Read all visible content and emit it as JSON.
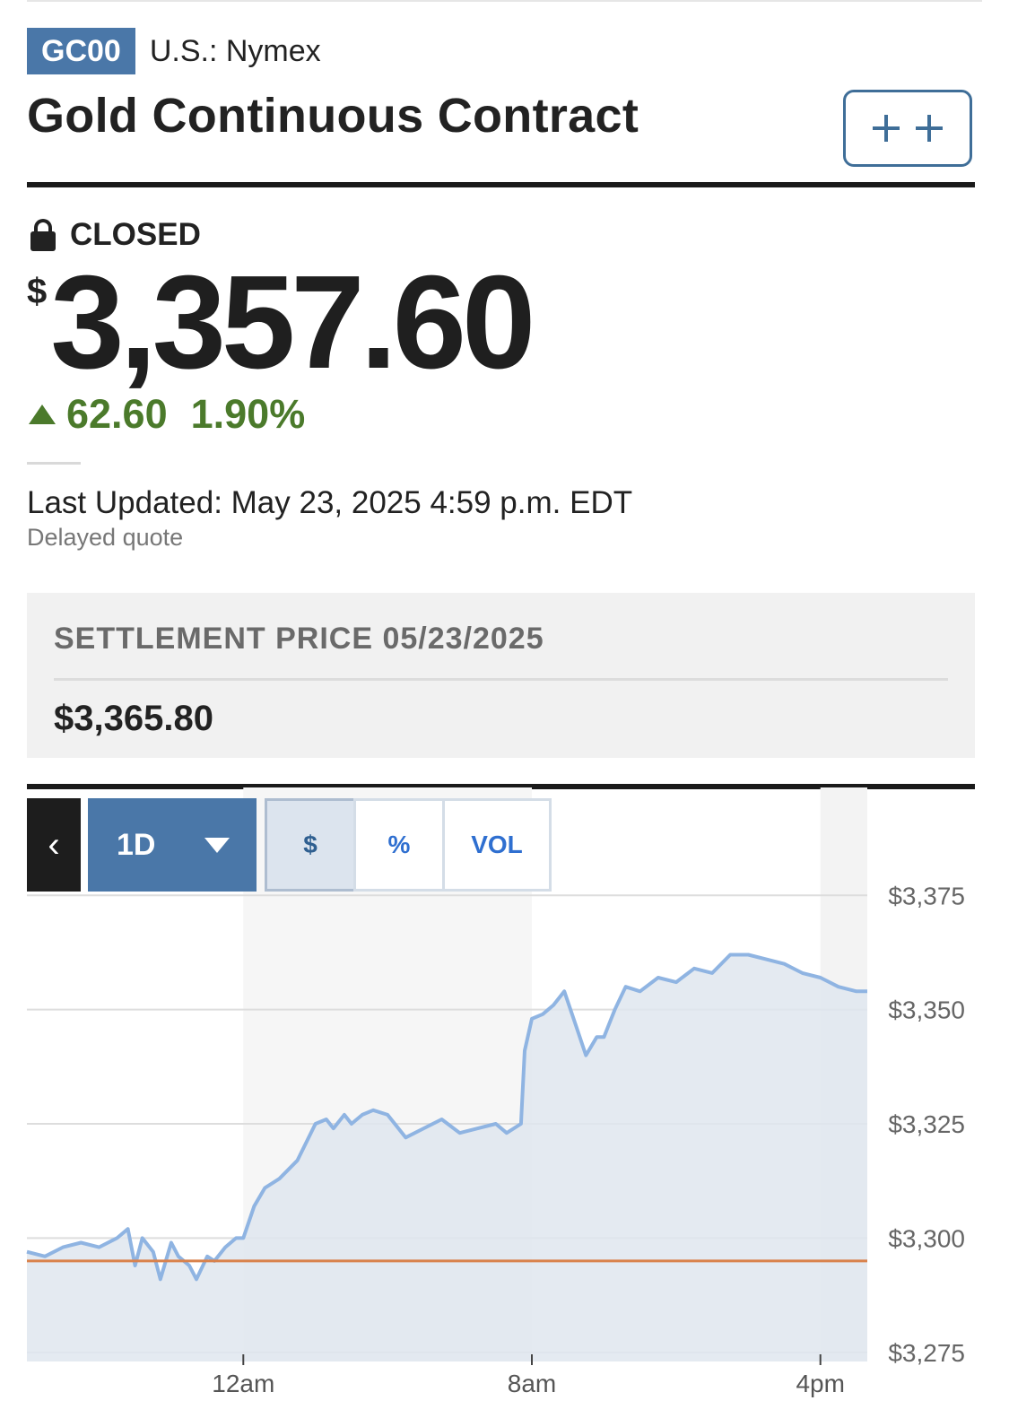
{
  "quote": {
    "ticker": "GC00",
    "exchange": "U.S.: Nymex",
    "name": "Gold Continuous Contract",
    "status": "CLOSED",
    "currency_symbol": "$",
    "price": "3,357.60",
    "change_points": "62.60",
    "change_percent": "1.90%",
    "change_direction": "up",
    "last_updated": "Last Updated: May 23, 2025 4:59 p.m. EDT",
    "delayed_note": "Delayed quote"
  },
  "settlement": {
    "label": "SETTLEMENT PRICE 05/23/2025",
    "value": "$3,365.80"
  },
  "chart_controls": {
    "back_icon": "chevron-left-icon",
    "range_label": "1D",
    "toggles": [
      "$",
      "%",
      "VOL"
    ],
    "active_toggle": "$"
  },
  "colors": {
    "ticker_badge": "#4a77a8",
    "positive": "#4b7a2b",
    "line": "#8fb4e2",
    "area": "#dfe6ef",
    "previous_close_line": "#d9824c",
    "watchlist_border": "#3f6e98"
  },
  "chart_data": {
    "type": "area",
    "title": "",
    "xlabel": "",
    "ylabel": "",
    "y_ticks": [
      3375,
      3350,
      3325,
      3300,
      3275
    ],
    "y_tick_labels": [
      "$3,375",
      "$3,350",
      "$3,325",
      "$3,300",
      "$3,275"
    ],
    "ylim": [
      3273,
      3378
    ],
    "x_ticks": [
      0,
      8,
      16
    ],
    "x_tick_labels": [
      "12am",
      "8am",
      "4pm"
    ],
    "xlim": [
      -6,
      17.3
    ],
    "previous_close": 3295.0,
    "grid": true,
    "legend": "none",
    "series": [
      {
        "x": [
          -6,
          -5.5,
          -5,
          -4.5,
          -4,
          -3.5,
          -3.2,
          -3,
          -2.8,
          -2.5,
          -2.3,
          -2,
          -1.8,
          -1.5,
          -1.3,
          -1,
          -0.8,
          -0.5,
          -0.2,
          0,
          0.3,
          0.6,
          1,
          1.5,
          2,
          2.3,
          2.5,
          2.8,
          3,
          3.3,
          3.6,
          4,
          4.5,
          5,
          5.5,
          6,
          6.5,
          7,
          7.3,
          7.7,
          7.8,
          8,
          8.3,
          8.6,
          8.9,
          9.2,
          9.5,
          9.8,
          10,
          10.3,
          10.6,
          11,
          11.5,
          12,
          12.5,
          13,
          13.5,
          14,
          14.5,
          15,
          15.5,
          16,
          16.5,
          17,
          17.3
        ],
        "y": [
          3297,
          3296,
          3298,
          3299,
          3298,
          3300,
          3302,
          3294,
          3300,
          3297,
          3291,
          3299,
          3296,
          3294,
          3291,
          3296,
          3295,
          3298,
          3300,
          3300,
          3307,
          3311,
          3313,
          3317,
          3325,
          3326,
          3324,
          3327,
          3325,
          3327,
          3328,
          3327,
          3322,
          3324,
          3326,
          3323,
          3324,
          3325,
          3323,
          3325,
          3341,
          3348,
          3349,
          3351,
          3354,
          3347,
          3340,
          3344,
          3344,
          3350,
          3355,
          3354,
          3357,
          3356,
          3359,
          3358,
          3362,
          3362,
          3361,
          3360,
          3358,
          3357,
          3355,
          3354,
          3354
        ]
      }
    ]
  }
}
